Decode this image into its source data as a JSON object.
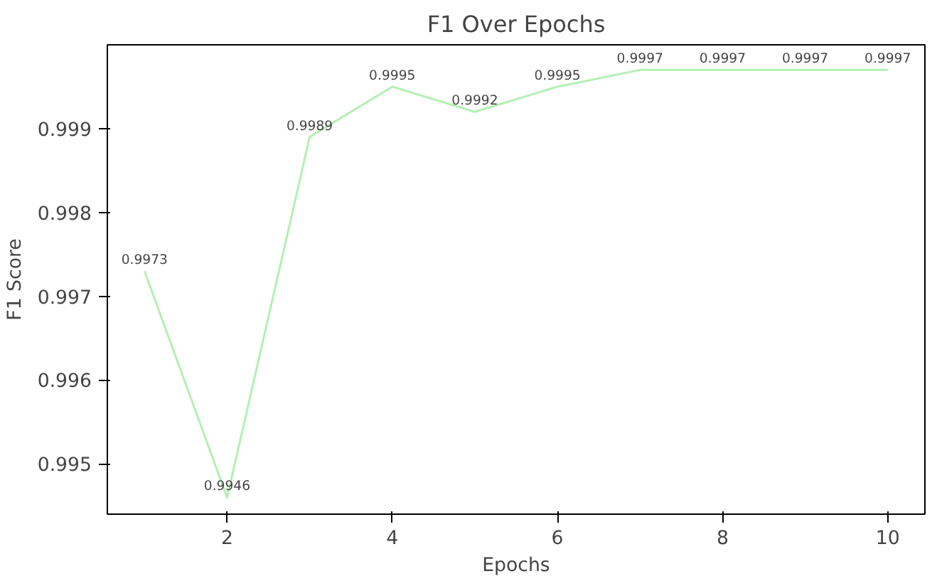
{
  "chart_data": {
    "type": "line",
    "title": "F1 Over Epochs",
    "xlabel": "Epochs",
    "ylabel": "F1 Score",
    "x": [
      1,
      2,
      3,
      4,
      5,
      6,
      7,
      8,
      9,
      10
    ],
    "series": [
      {
        "color": "#b3f0b3",
        "values": [
          0.9973,
          0.9946,
          0.9989,
          0.9995,
          0.9992,
          0.9995,
          0.9997,
          0.9997,
          0.9997,
          0.9997
        ]
      }
    ],
    "xlim": [
      0.55,
      10.45
    ],
    "ylim": [
      0.9944,
      1.0
    ],
    "xticks": [
      2,
      4,
      6,
      8,
      10
    ],
    "yticks": [
      0.995,
      0.996,
      0.997,
      0.998,
      0.999
    ],
    "data_labels": true,
    "grid": false
  }
}
